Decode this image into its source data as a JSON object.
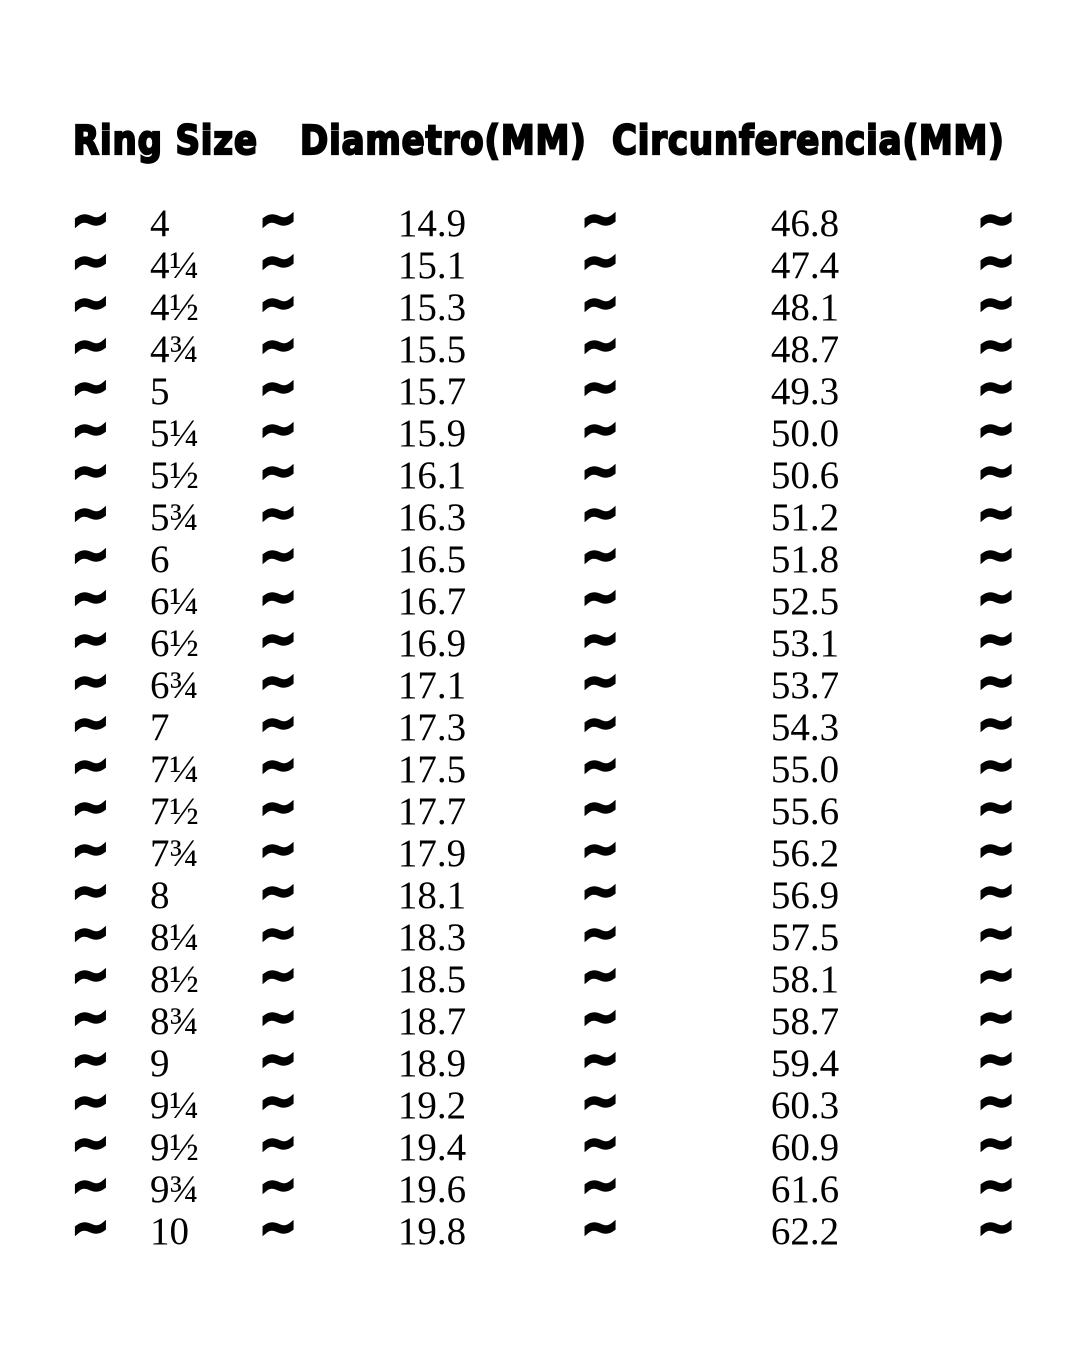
{
  "page": {
    "background": "#ffffff",
    "text_color": "#000000"
  },
  "table": {
    "headers": {
      "ring_size": "Ring Size",
      "diameter": "Diametro(MM)",
      "circumference": "Circunferencia(MM)"
    },
    "separator": "~",
    "rows": [
      {
        "size": "4",
        "diameter": "14.9",
        "circumference": "46.8"
      },
      {
        "size": "4¼",
        "diameter": "15.1",
        "circumference": "47.4"
      },
      {
        "size": "4½",
        "diameter": "15.3",
        "circumference": "48.1"
      },
      {
        "size": "4¾",
        "diameter": "15.5",
        "circumference": "48.7"
      },
      {
        "size": "5",
        "diameter": "15.7",
        "circumference": "49.3"
      },
      {
        "size": "5¼",
        "diameter": "15.9",
        "circumference": "50.0"
      },
      {
        "size": "5½",
        "diameter": "16.1",
        "circumference": "50.6"
      },
      {
        "size": "5¾",
        "diameter": "16.3",
        "circumference": "51.2"
      },
      {
        "size": "6",
        "diameter": "16.5",
        "circumference": "51.8"
      },
      {
        "size": "6¼",
        "diameter": "16.7",
        "circumference": "52.5"
      },
      {
        "size": "6½",
        "diameter": "16.9",
        "circumference": "53.1"
      },
      {
        "size": "6¾",
        "diameter": "17.1",
        "circumference": "53.7"
      },
      {
        "size": "7",
        "diameter": "17.3",
        "circumference": "54.3"
      },
      {
        "size": "7¼",
        "diameter": "17.5",
        "circumference": "55.0"
      },
      {
        "size": "7½",
        "diameter": "17.7",
        "circumference": "55.6"
      },
      {
        "size": "7¾",
        "diameter": "17.9",
        "circumference": "56.2"
      },
      {
        "size": "8",
        "diameter": "18.1",
        "circumference": "56.9"
      },
      {
        "size": "8¼",
        "diameter": "18.3",
        "circumference": "57.5"
      },
      {
        "size": "8½",
        "diameter": "18.5",
        "circumference": "58.1"
      },
      {
        "size": "8¾",
        "diameter": "18.7",
        "circumference": "58.7"
      },
      {
        "size": "9",
        "diameter": "18.9",
        "circumference": "59.4"
      },
      {
        "size": "9¼",
        "diameter": "19.2",
        "circumference": "60.3"
      },
      {
        "size": "9½",
        "diameter": "19.4",
        "circumference": "60.9"
      },
      {
        "size": "9¾",
        "diameter": "19.6",
        "circumference": "61.6"
      },
      {
        "size": "10",
        "diameter": "19.8",
        "circumference": "62.2"
      }
    ]
  }
}
